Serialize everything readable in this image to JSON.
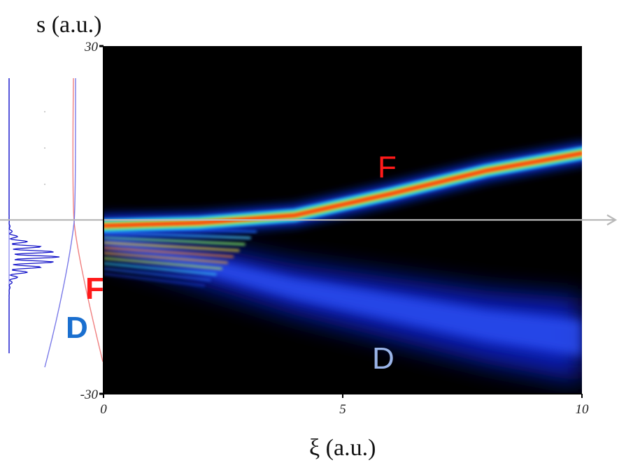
{
  "chart_data": {
    "type": "heatmap",
    "xlabel": "ξ (a.u.)",
    "ylabel": "s (a.u.)",
    "xlim": [
      0,
      10
    ],
    "ylim": [
      -30,
      30
    ],
    "x_ticks": [
      "0",
      "5",
      "10"
    ],
    "y_ticks": [
      "30",
      "-30"
    ],
    "colormap": "jet",
    "background": "#000000",
    "branches": [
      {
        "label": "F",
        "color": "#ff1a1a",
        "center_s": [
          [
            0,
            -1
          ],
          [
            2,
            -0.5
          ],
          [
            4,
            0.8
          ],
          [
            6,
            4.5
          ],
          [
            8,
            8.5
          ],
          [
            10,
            11.5
          ]
        ],
        "intensity": "high"
      },
      {
        "label": "D",
        "color": "#9ab4e8",
        "center_s": [
          [
            0,
            -3
          ],
          [
            2,
            -7
          ],
          [
            4,
            -11
          ],
          [
            6,
            -14
          ],
          [
            8,
            -17
          ],
          [
            10,
            -19
          ]
        ],
        "intensity": "low"
      }
    ],
    "reference_line_s": 0,
    "side_profile_labels": [
      {
        "label": "F",
        "color": "#ff1a1a"
      },
      {
        "label": "D",
        "color": "#1a6fcf"
      }
    ]
  }
}
